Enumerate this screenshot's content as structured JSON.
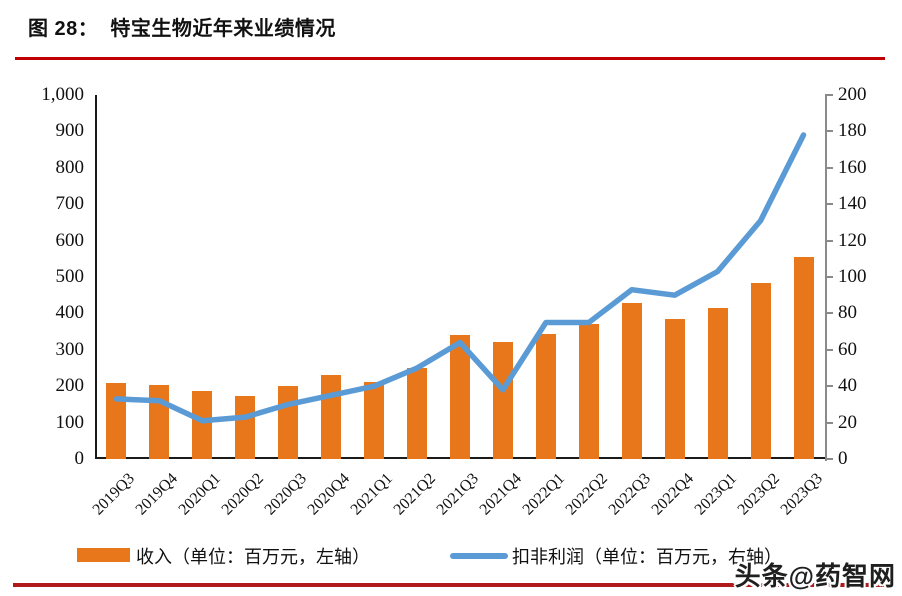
{
  "figure": {
    "title": "图 28：  特宝生物近年来业绩情况",
    "watermark": "头条@药智网"
  },
  "colors": {
    "bar_orange": "#E8761B",
    "line_blue": "#5B9BD5",
    "rule_red": "#C00000",
    "bottom_rule_red": "#B01A1A",
    "axis_black": "#1a1a1a",
    "axis_gray": "#8a8a8a"
  },
  "chart_data": {
    "type": "bar",
    "subtype": "bar+line combo, dual axis",
    "title": "特宝生物近年来业绩情况",
    "categories": [
      "2019Q3",
      "2019Q4",
      "2020Q1",
      "2020Q2",
      "2020Q3",
      "2020Q4",
      "2021Q1",
      "2021Q2",
      "2021Q3",
      "2021Q4",
      "2022Q1",
      "2022Q2",
      "2022Q3",
      "2022Q4",
      "2023Q1",
      "2023Q2",
      "2023Q3"
    ],
    "series": [
      {
        "name": "收入（单位：百万元，左轴）",
        "type": "bar",
        "axis": "left",
        "color": "#E8761B",
        "values": [
          208,
          203,
          188,
          172,
          201,
          232,
          212,
          250,
          341,
          321,
          343,
          370,
          429,
          385,
          416,
          484,
          556
        ]
      },
      {
        "name": "扣非利润（单位：百万元，右轴）",
        "type": "line",
        "axis": "right",
        "color": "#5B9BD5",
        "values": [
          33,
          32,
          21,
          23,
          30,
          35,
          40,
          50,
          64,
          38,
          75,
          75,
          93,
          90,
          103,
          131,
          178
        ]
      }
    ],
    "left_axis": {
      "min": 0,
      "max": 1000,
      "step": 100,
      "ticks_top_to_bottom": [
        "1,000",
        "900",
        "800",
        "700",
        "600",
        "500",
        "400",
        "300",
        "200",
        "100",
        "0"
      ]
    },
    "right_axis": {
      "min": 0,
      "max": 200,
      "step": 20,
      "ticks_top_to_bottom": [
        "200",
        "180",
        "160",
        "140",
        "120",
        "100",
        "80",
        "60",
        "40",
        "20",
        "0"
      ]
    },
    "grid": false,
    "legend_position": "bottom",
    "x_tick_rotation_deg": -45
  }
}
